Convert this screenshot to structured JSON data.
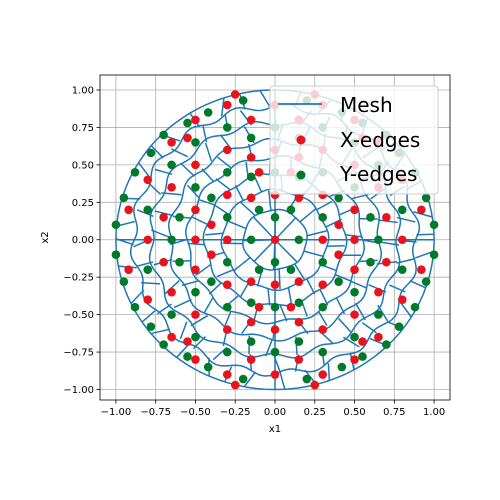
{
  "chart_data": {
    "type": "scatter",
    "title": "",
    "xlabel": "x1",
    "ylabel": "x2",
    "xlim": [
      -1.1,
      1.1
    ],
    "ylim": [
      -1.07,
      1.1
    ],
    "xticks": [
      -1.0,
      -0.75,
      -0.5,
      -0.25,
      0.0,
      0.25,
      0.5,
      0.75,
      1.0
    ],
    "yticks": [
      -1.0,
      -0.75,
      -0.5,
      -0.25,
      0.0,
      0.25,
      0.5,
      0.75,
      1.0
    ],
    "xtick_labels": [
      "−1.00",
      "−0.75",
      "−0.50",
      "−0.25",
      "0.00",
      "0.25",
      "0.50",
      "0.75",
      "1.00"
    ],
    "ytick_labels": [
      "−1.00",
      "−0.75",
      "−0.50",
      "−0.25",
      "0.00",
      "0.25",
      "0.50",
      "0.75",
      "1.00"
    ],
    "grid": true,
    "legend_position": "top-right",
    "mesh": {
      "name": "Mesh",
      "color": "#1f77b4",
      "rings": [
        0.2,
        0.33,
        0.44,
        0.55,
        0.66,
        0.78,
        0.89,
        1.0
      ],
      "spokes_per_ring": [
        8,
        12,
        16,
        20,
        24,
        28,
        32,
        36
      ]
    },
    "series": [
      {
        "name": "X-edges",
        "color": "#e8131c",
        "points": [
          [
            0.0,
            -0.9
          ],
          [
            0.0,
            -0.6
          ],
          [
            0.0,
            -0.3
          ],
          [
            0.0,
            0.0
          ],
          [
            0.0,
            0.3
          ],
          [
            0.0,
            0.6
          ],
          [
            0.0,
            0.9
          ],
          [
            0.15,
            -0.8
          ],
          [
            0.15,
            -0.55
          ],
          [
            0.15,
            -0.28
          ],
          [
            0.15,
            0.28
          ],
          [
            0.15,
            0.55
          ],
          [
            0.15,
            0.8
          ],
          [
            0.3,
            -0.9
          ],
          [
            0.3,
            -0.6
          ],
          [
            0.3,
            -0.3
          ],
          [
            0.3,
            0.0
          ],
          [
            0.3,
            0.3
          ],
          [
            0.3,
            0.6
          ],
          [
            0.3,
            0.9
          ],
          [
            0.5,
            -0.8
          ],
          [
            0.5,
            -0.5
          ],
          [
            0.5,
            -0.2
          ],
          [
            0.5,
            0.0
          ],
          [
            0.5,
            0.2
          ],
          [
            0.5,
            0.5
          ],
          [
            0.5,
            0.8
          ],
          [
            0.65,
            -0.65
          ],
          [
            0.65,
            -0.35
          ],
          [
            0.65,
            0.35
          ],
          [
            0.65,
            0.65
          ],
          [
            0.8,
            -0.4
          ],
          [
            0.8,
            0.0
          ],
          [
            0.8,
            0.4
          ],
          [
            -0.15,
            -0.8
          ],
          [
            -0.15,
            -0.55
          ],
          [
            -0.15,
            -0.28
          ],
          [
            -0.15,
            0.28
          ],
          [
            -0.15,
            0.55
          ],
          [
            -0.15,
            0.8
          ],
          [
            -0.3,
            -0.9
          ],
          [
            -0.3,
            -0.6
          ],
          [
            -0.3,
            -0.3
          ],
          [
            -0.3,
            0.0
          ],
          [
            -0.3,
            0.3
          ],
          [
            -0.3,
            0.6
          ],
          [
            -0.3,
            0.9
          ],
          [
            -0.5,
            -0.8
          ],
          [
            -0.5,
            -0.5
          ],
          [
            -0.5,
            -0.2
          ],
          [
            -0.5,
            0.0
          ],
          [
            -0.5,
            0.2
          ],
          [
            -0.5,
            0.5
          ],
          [
            -0.5,
            0.8
          ],
          [
            -0.65,
            -0.65
          ],
          [
            -0.65,
            -0.35
          ],
          [
            -0.65,
            0.35
          ],
          [
            -0.65,
            0.65
          ],
          [
            -0.8,
            -0.4
          ],
          [
            -0.8,
            0.0
          ],
          [
            -0.8,
            0.4
          ],
          [
            0.92,
            -0.2
          ],
          [
            0.92,
            0.2
          ],
          [
            -0.92,
            -0.2
          ],
          [
            -0.92,
            0.2
          ],
          [
            0.25,
            -0.97
          ],
          [
            0.25,
            0.97
          ],
          [
            -0.25,
            -0.97
          ],
          [
            -0.25,
            0.97
          ],
          [
            0.4,
            0.1
          ],
          [
            0.4,
            -0.1
          ],
          [
            -0.4,
            0.1
          ],
          [
            -0.4,
            -0.1
          ],
          [
            0.1,
            0.45
          ],
          [
            -0.1,
            0.45
          ],
          [
            0.1,
            -0.45
          ],
          [
            -0.1,
            -0.45
          ],
          [
            0.7,
            0.15
          ],
          [
            -0.7,
            0.15
          ],
          [
            0.7,
            -0.15
          ],
          [
            -0.7,
            -0.15
          ],
          [
            0.55,
            0.68
          ],
          [
            -0.55,
            0.68
          ],
          [
            0.55,
            -0.68
          ],
          [
            -0.55,
            -0.68
          ]
        ]
      },
      {
        "name": "Y-edges",
        "color": "#007a2a",
        "points": [
          [
            1.0,
            0.1
          ],
          [
            1.0,
            -0.1
          ],
          [
            -1.0,
            0.1
          ],
          [
            -1.0,
            -0.1
          ],
          [
            0.95,
            0.28
          ],
          [
            0.95,
            -0.28
          ],
          [
            -0.95,
            0.28
          ],
          [
            -0.95,
            -0.28
          ],
          [
            0.88,
            0.45
          ],
          [
            0.88,
            -0.45
          ],
          [
            -0.88,
            0.45
          ],
          [
            -0.88,
            -0.45
          ],
          [
            0.78,
            0.58
          ],
          [
            0.78,
            -0.58
          ],
          [
            -0.78,
            0.58
          ],
          [
            -0.78,
            -0.58
          ],
          [
            0.7,
            0.7
          ],
          [
            0.7,
            -0.7
          ],
          [
            -0.7,
            0.7
          ],
          [
            -0.7,
            -0.7
          ],
          [
            0.55,
            0.78
          ],
          [
            0.55,
            -0.78
          ],
          [
            -0.55,
            0.78
          ],
          [
            -0.55,
            -0.78
          ],
          [
            0.42,
            0.85
          ],
          [
            0.42,
            -0.85
          ],
          [
            -0.42,
            0.85
          ],
          [
            -0.42,
            -0.85
          ],
          [
            0.2,
            0.93
          ],
          [
            0.2,
            -0.93
          ],
          [
            -0.2,
            0.93
          ],
          [
            -0.2,
            -0.93
          ],
          [
            0.0,
            0.15
          ],
          [
            0.0,
            0.45
          ],
          [
            0.0,
            0.75
          ],
          [
            0.0,
            -0.15
          ],
          [
            0.0,
            -0.45
          ],
          [
            0.0,
            -0.75
          ],
          [
            0.15,
            0.0
          ],
          [
            0.15,
            0.42
          ],
          [
            0.15,
            0.68
          ],
          [
            0.15,
            -0.42
          ],
          [
            0.15,
            -0.68
          ],
          [
            -0.15,
            0.0
          ],
          [
            -0.15,
            0.42
          ],
          [
            -0.15,
            0.68
          ],
          [
            -0.15,
            -0.42
          ],
          [
            -0.15,
            -0.68
          ],
          [
            0.3,
            0.15
          ],
          [
            0.3,
            0.45
          ],
          [
            0.3,
            0.75
          ],
          [
            0.3,
            -0.15
          ],
          [
            0.3,
            -0.45
          ],
          [
            0.3,
            -0.75
          ],
          [
            -0.3,
            0.15
          ],
          [
            -0.3,
            0.45
          ],
          [
            -0.3,
            0.75
          ],
          [
            -0.3,
            -0.15
          ],
          [
            -0.3,
            -0.45
          ],
          [
            -0.3,
            -0.75
          ],
          [
            0.5,
            0.35
          ],
          [
            0.5,
            0.65
          ],
          [
            0.5,
            -0.35
          ],
          [
            0.5,
            -0.65
          ],
          [
            -0.5,
            0.35
          ],
          [
            -0.5,
            0.65
          ],
          [
            -0.5,
            -0.35
          ],
          [
            -0.5,
            -0.65
          ],
          [
            0.65,
            0.0
          ],
          [
            0.65,
            0.5
          ],
          [
            0.65,
            -0.5
          ],
          [
            -0.65,
            0.0
          ],
          [
            -0.65,
            0.5
          ],
          [
            -0.65,
            -0.5
          ],
          [
            0.8,
            0.2
          ],
          [
            0.8,
            -0.2
          ],
          [
            -0.8,
            0.2
          ],
          [
            -0.8,
            -0.2
          ],
          [
            0.4,
            0.28
          ],
          [
            0.4,
            -0.28
          ],
          [
            -0.4,
            0.28
          ],
          [
            -0.4,
            -0.28
          ],
          [
            0.6,
            0.15
          ],
          [
            0.6,
            -0.15
          ],
          [
            -0.6,
            0.15
          ],
          [
            -0.6,
            -0.15
          ],
          [
            0.1,
            0.2
          ],
          [
            -0.1,
            0.2
          ],
          [
            0.1,
            -0.2
          ],
          [
            -0.1,
            -0.2
          ]
        ]
      }
    ],
    "legend": [
      {
        "label": "Mesh",
        "kind": "line",
        "color": "#1f77b4"
      },
      {
        "label": "X-edges",
        "kind": "marker",
        "color": "#e8131c"
      },
      {
        "label": "Y-edges",
        "kind": "marker",
        "color": "#007a2a"
      }
    ]
  }
}
